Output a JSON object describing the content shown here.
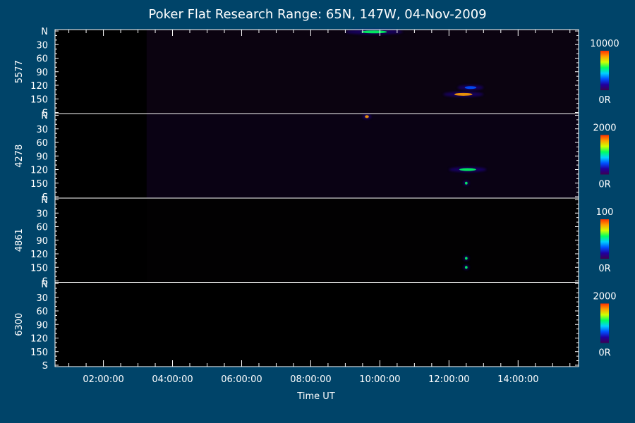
{
  "chart_data": {
    "type": "heatmap",
    "title": "Poker Flat Research Range: 65N, 147W, 04-Nov-2009",
    "xlabel": "Time UT",
    "x_ticks": [
      "02:00:00",
      "04:00:00",
      "06:00:00",
      "08:00:00",
      "10:00:00",
      "12:00:00",
      "14:00:00"
    ],
    "xlim_hours": [
      0.6,
      15.75
    ],
    "y_ticks": [
      "N",
      "30",
      "60",
      "90",
      "120",
      "150",
      "S"
    ],
    "panels": [
      {
        "name": "5577",
        "colorbar_max": "10000",
        "colorbar_min": "0R",
        "features": [
          {
            "time_start": "09:00",
            "time_end": "10:40",
            "angle": 2,
            "intensity": "medium"
          },
          {
            "time_start": "11:50",
            "time_end": "13:00",
            "angle": 140,
            "intensity": "high"
          },
          {
            "time_start": "12:15",
            "time_end": "13:00",
            "angle": 125,
            "intensity": "low"
          }
        ]
      },
      {
        "name": "4278",
        "colorbar_max": "2000",
        "colorbar_min": "0R",
        "features": [
          {
            "time_start": "09:30",
            "time_end": "09:45",
            "angle": 3,
            "intensity": "high"
          },
          {
            "time_start": "12:00",
            "time_end": "13:05",
            "angle": 120,
            "intensity": "medium"
          },
          {
            "time_start": "12:25",
            "time_end": "12:35",
            "angle": 150,
            "intensity": "medium"
          }
        ]
      },
      {
        "name": "4861",
        "colorbar_max": "100",
        "colorbar_min": "0R",
        "features": [
          {
            "time_start": "12:25",
            "time_end": "12:35",
            "angle": 130,
            "intensity": "medium"
          },
          {
            "time_start": "12:25",
            "time_end": "12:35",
            "angle": 150,
            "intensity": "medium"
          }
        ]
      },
      {
        "name": "6300",
        "colorbar_max": "2000",
        "colorbar_min": "0R",
        "features": []
      }
    ],
    "data_start_time": "03:15",
    "colormap": [
      "#3d0050",
      "#2000a0",
      "#0050ff",
      "#00d0ff",
      "#00ff60",
      "#d0ff00",
      "#ffa000",
      "#ff3000"
    ]
  }
}
